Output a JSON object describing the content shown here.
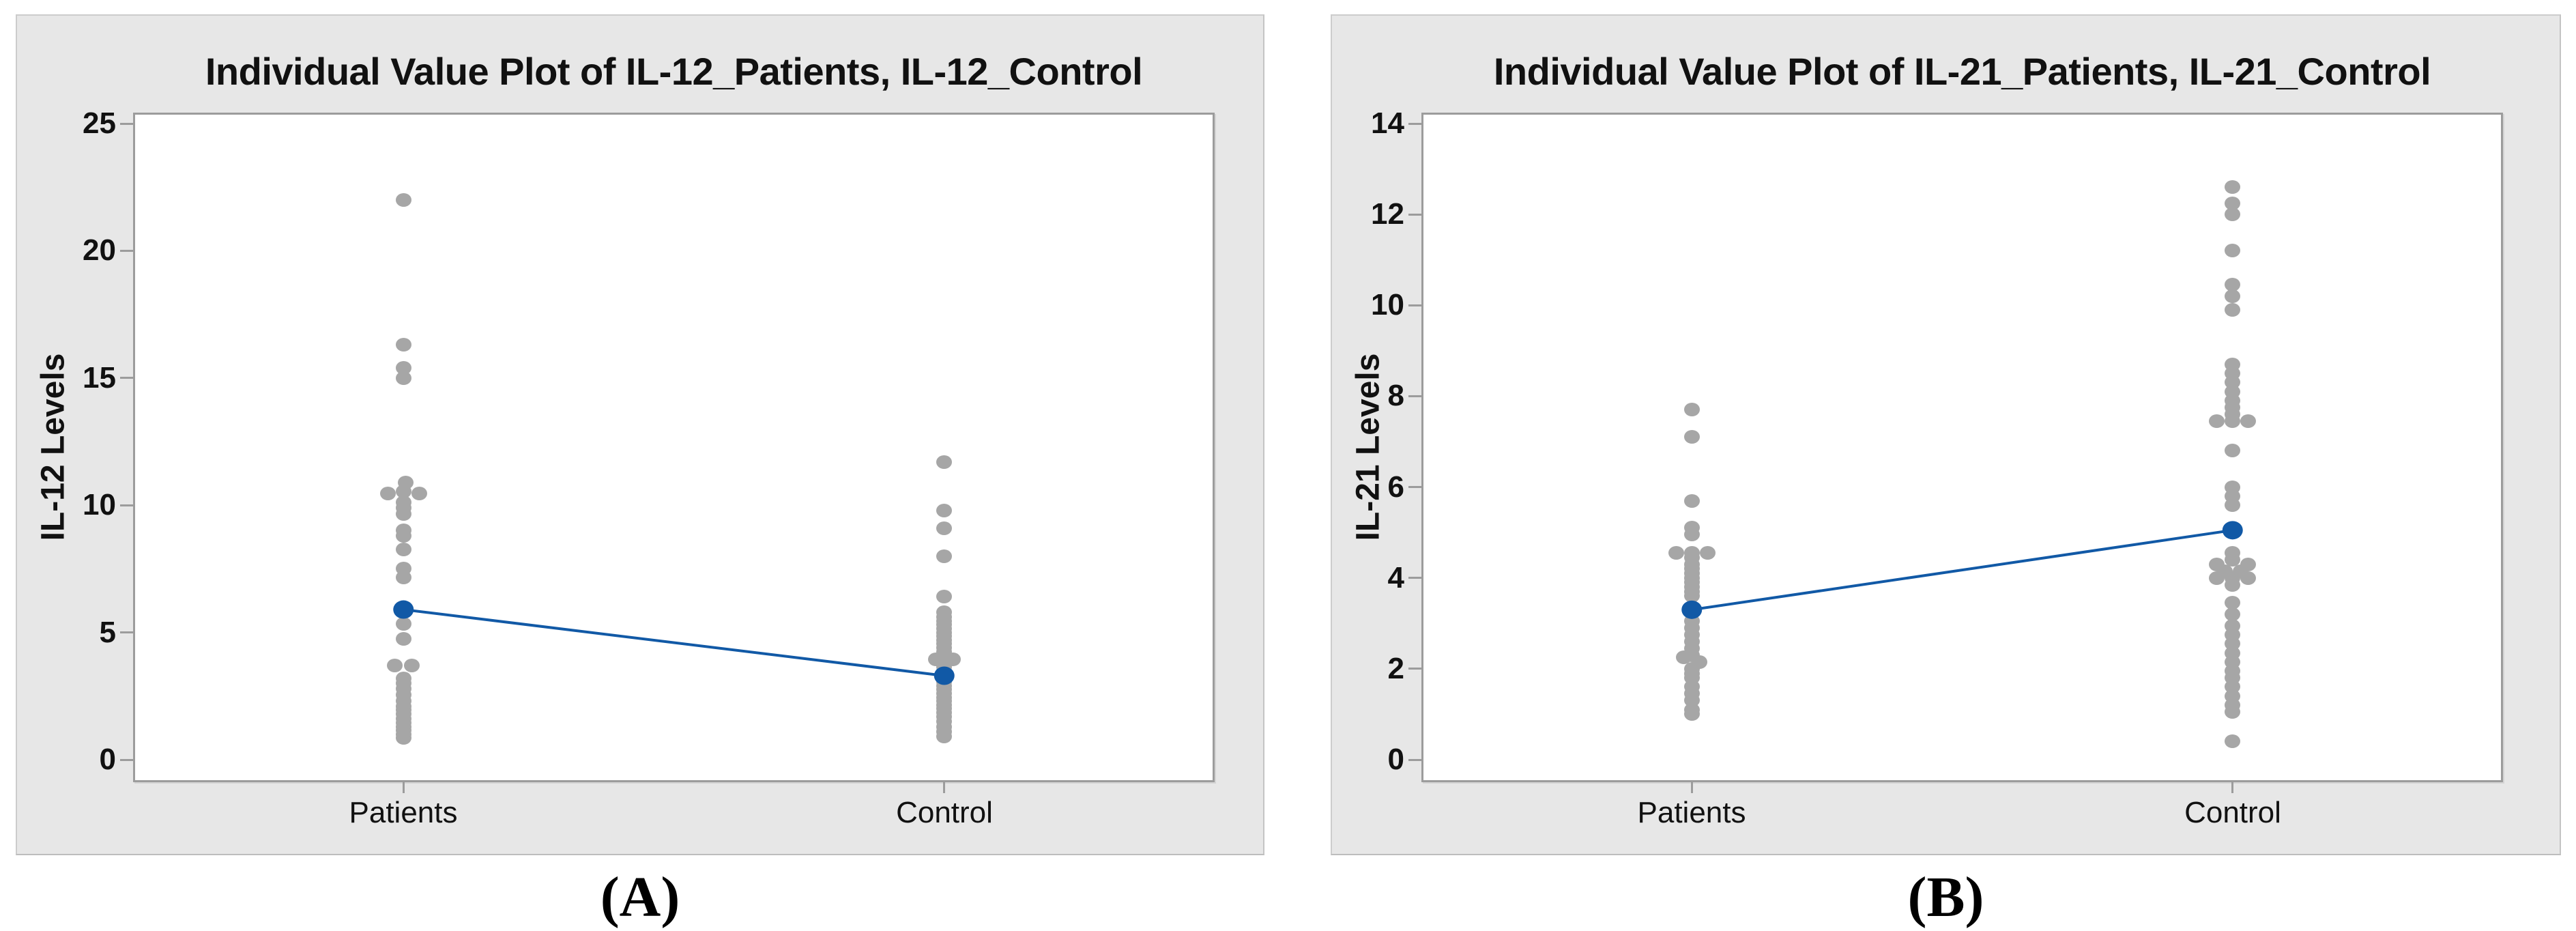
{
  "figure": {
    "captions": [
      "(A)",
      "(B)"
    ]
  },
  "style": {
    "point_color": "#A6A6A6",
    "mean_color": "#1159A6",
    "frame_color": "#9C9C9C",
    "panel_bg": "#E7E7E7",
    "plot_bg": "#FFFFFF",
    "text_color": "#111111"
  },
  "chart_data": [
    {
      "type": "scatter",
      "title": "Individual Value Plot of IL-12_Patients, IL-12_Control",
      "ylabel": "IL-12 Levels",
      "categories": [
        "Patients",
        "Control"
      ],
      "yticks": [
        0,
        5,
        10,
        15,
        20,
        25
      ],
      "ylim": [
        0,
        25
      ],
      "grid": false,
      "legend": "none",
      "means": [
        5.9,
        3.3
      ],
      "series": [
        {
          "name": "IL-12_Patients",
          "category": "Patients",
          "points": [
            [
              22.0,
              0
            ],
            [
              16.3,
              0
            ],
            [
              15.4,
              0
            ],
            [
              15.0,
              0
            ],
            [
              10.9,
              0.15
            ],
            [
              10.55,
              0
            ],
            [
              10.45,
              -1
            ],
            [
              10.45,
              1
            ],
            [
              10.1,
              0
            ],
            [
              9.9,
              0
            ],
            [
              9.65,
              0
            ],
            [
              9.0,
              0
            ],
            [
              8.8,
              0
            ],
            [
              8.25,
              0
            ],
            [
              7.5,
              0
            ],
            [
              7.15,
              0
            ],
            [
              5.35,
              0
            ],
            [
              4.75,
              0
            ],
            [
              3.7,
              -0.55
            ],
            [
              3.7,
              0.55
            ],
            [
              3.2,
              0
            ],
            [
              3.0,
              0
            ],
            [
              2.8,
              0
            ],
            [
              2.55,
              0
            ],
            [
              2.3,
              0
            ],
            [
              2.1,
              0
            ],
            [
              1.95,
              0
            ],
            [
              1.8,
              0
            ],
            [
              1.6,
              0
            ],
            [
              1.45,
              0
            ],
            [
              1.3,
              0
            ],
            [
              1.15,
              0
            ],
            [
              1.0,
              0
            ],
            [
              0.85,
              0
            ]
          ]
        },
        {
          "name": "IL-12_Control",
          "category": "Control",
          "points": [
            [
              11.7,
              0
            ],
            [
              9.8,
              0
            ],
            [
              9.1,
              0
            ],
            [
              8.0,
              0
            ],
            [
              6.4,
              0
            ],
            [
              5.8,
              0
            ],
            [
              5.6,
              0
            ],
            [
              5.45,
              0
            ],
            [
              5.3,
              0
            ],
            [
              5.15,
              0
            ],
            [
              5.0,
              0
            ],
            [
              4.85,
              0
            ],
            [
              4.7,
              0
            ],
            [
              4.55,
              0
            ],
            [
              4.4,
              0
            ],
            [
              4.25,
              0
            ],
            [
              4.1,
              0
            ],
            [
              3.95,
              -0.55
            ],
            [
              3.95,
              0.55
            ],
            [
              3.8,
              0
            ],
            [
              3.65,
              0
            ],
            [
              3.5,
              0
            ],
            [
              3.35,
              0
            ],
            [
              3.2,
              0
            ],
            [
              3.05,
              0
            ],
            [
              2.9,
              0
            ],
            [
              2.75,
              0
            ],
            [
              2.6,
              0
            ],
            [
              2.45,
              0
            ],
            [
              2.3,
              0
            ],
            [
              2.15,
              0
            ],
            [
              2.0,
              0
            ],
            [
              1.85,
              0
            ],
            [
              1.7,
              0
            ],
            [
              1.5,
              0
            ],
            [
              1.3,
              0
            ],
            [
              1.1,
              0
            ],
            [
              0.9,
              0
            ]
          ]
        }
      ]
    },
    {
      "type": "scatter",
      "title": "Individual Value Plot of IL-21_Patients, IL-21_Control",
      "ylabel": "IL-21 Levels",
      "categories": [
        "Patients",
        "Control"
      ],
      "yticks": [
        0,
        2,
        4,
        6,
        8,
        10,
        12,
        14
      ],
      "ylim": [
        0,
        14
      ],
      "grid": false,
      "legend": "none",
      "means": [
        3.3,
        5.05
      ],
      "series": [
        {
          "name": "IL-21_Patients",
          "category": "Patients",
          "points": [
            [
              7.7,
              0
            ],
            [
              7.1,
              0
            ],
            [
              5.7,
              0
            ],
            [
              5.1,
              0
            ],
            [
              4.95,
              0
            ],
            [
              4.55,
              -1
            ],
            [
              4.55,
              0
            ],
            [
              4.55,
              1
            ],
            [
              4.45,
              0
            ],
            [
              4.3,
              0
            ],
            [
              4.2,
              0
            ],
            [
              4.1,
              0
            ],
            [
              4.0,
              0
            ],
            [
              3.9,
              0
            ],
            [
              3.8,
              0
            ],
            [
              3.7,
              0
            ],
            [
              3.6,
              0
            ],
            [
              3.05,
              0
            ],
            [
              2.9,
              0
            ],
            [
              2.75,
              0
            ],
            [
              2.6,
              0
            ],
            [
              2.45,
              0
            ],
            [
              2.3,
              0
            ],
            [
              2.25,
              -0.5
            ],
            [
              2.15,
              0.5
            ],
            [
              2.0,
              0
            ],
            [
              1.9,
              0
            ],
            [
              1.8,
              0
            ],
            [
              1.6,
              0
            ],
            [
              1.45,
              0
            ],
            [
              1.3,
              0
            ],
            [
              1.1,
              0
            ],
            [
              1.0,
              0
            ]
          ]
        },
        {
          "name": "IL-21_Control",
          "category": "Control",
          "points": [
            [
              12.6,
              0
            ],
            [
              12.25,
              0
            ],
            [
              12.0,
              0
            ],
            [
              11.2,
              0
            ],
            [
              10.45,
              0
            ],
            [
              10.2,
              0
            ],
            [
              9.9,
              0
            ],
            [
              8.7,
              0
            ],
            [
              8.5,
              0
            ],
            [
              8.3,
              0
            ],
            [
              8.1,
              0
            ],
            [
              7.9,
              0
            ],
            [
              7.75,
              0
            ],
            [
              7.6,
              0
            ],
            [
              7.45,
              -1
            ],
            [
              7.45,
              0
            ],
            [
              7.45,
              1
            ],
            [
              6.8,
              0
            ],
            [
              6.0,
              0
            ],
            [
              5.8,
              0
            ],
            [
              5.6,
              0
            ],
            [
              4.55,
              0
            ],
            [
              4.4,
              0
            ],
            [
              4.3,
              -1
            ],
            [
              4.3,
              1
            ],
            [
              4.15,
              -0.5
            ],
            [
              4.15,
              0.5
            ],
            [
              4.0,
              -1
            ],
            [
              4.0,
              0
            ],
            [
              4.0,
              1
            ],
            [
              3.85,
              0
            ],
            [
              3.45,
              0
            ],
            [
              3.2,
              0
            ],
            [
              2.95,
              0
            ],
            [
              2.75,
              0
            ],
            [
              2.55,
              0
            ],
            [
              2.35,
              0
            ],
            [
              2.15,
              0
            ],
            [
              1.95,
              0
            ],
            [
              1.8,
              0
            ],
            [
              1.6,
              0
            ],
            [
              1.4,
              0
            ],
            [
              1.2,
              0
            ],
            [
              1.05,
              0
            ],
            [
              0.4,
              0
            ]
          ]
        }
      ]
    }
  ]
}
